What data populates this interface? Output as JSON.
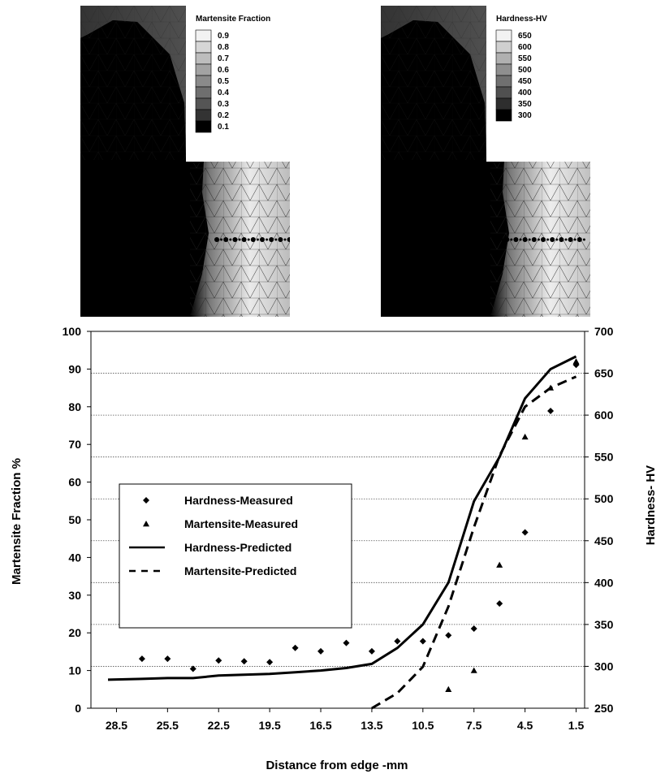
{
  "top_left_map": {
    "legend_title": "Martensite Fraction",
    "legend_levels": [
      "0.9",
      "0.8",
      "0.7",
      "0.6",
      "0.5",
      "0.4",
      "0.3",
      "0.2",
      "0.1"
    ],
    "legend_colors": [
      "#f2f2f2",
      "#d6d6d6",
      "#bdbdbd",
      "#a3a3a3",
      "#8a8a8a",
      "#6f6f6f",
      "#555555",
      "#333333",
      "#000000"
    ]
  },
  "top_right_map": {
    "legend_title": "Hardness-HV",
    "legend_levels": [
      "650",
      "600",
      "550",
      "500",
      "450",
      "400",
      "350",
      "300"
    ],
    "legend_colors": [
      "#f2f2f2",
      "#cfcfcf",
      "#b0b0b0",
      "#8f8f8f",
      "#707070",
      "#505050",
      "#2e2e2e",
      "#000000"
    ]
  },
  "chart_data": {
    "type": "line",
    "title": "",
    "xlabel": "Distance from edge -mm",
    "ylabel_left": "Martensite Fraction %",
    "ylabel_right": "Hardness- HV",
    "x_ticks": [
      "28.5",
      "25.5",
      "22.5",
      "19.5",
      "16.5",
      "13.5",
      "10.5",
      "7.5",
      "4.5",
      "1.5"
    ],
    "x_tick_values": [
      28.5,
      25.5,
      22.5,
      19.5,
      16.5,
      13.5,
      10.5,
      7.5,
      4.5,
      1.5
    ],
    "x_range": [
      30,
      1
    ],
    "x_reversed": true,
    "y_left_ticks": [
      "0",
      "10",
      "20",
      "30",
      "40",
      "50",
      "60",
      "70",
      "80",
      "90",
      "100"
    ],
    "y_left_range": [
      0,
      100
    ],
    "y_right_ticks": [
      "250",
      "300",
      "350",
      "400",
      "450",
      "500",
      "550",
      "600",
      "650",
      "700"
    ],
    "y_right_range": [
      250,
      700
    ],
    "grid": "horizontal-dotted",
    "legend_placement": "center-left",
    "series": [
      {
        "name": "Hardness-Measured",
        "axis": "right",
        "style": "diamond",
        "points": [
          [
            27,
            309
          ],
          [
            25.5,
            309
          ],
          [
            24,
            297
          ],
          [
            22.5,
            307
          ],
          [
            21,
            306
          ],
          [
            19.5,
            305
          ],
          [
            18,
            322
          ],
          [
            16.5,
            318
          ],
          [
            15,
            328
          ],
          [
            13.5,
            318
          ],
          [
            12,
            330
          ],
          [
            10.5,
            330
          ],
          [
            9,
            337
          ],
          [
            7.5,
            345
          ],
          [
            6,
            375
          ],
          [
            4.5,
            460
          ],
          [
            3,
            605
          ],
          [
            1.5,
            660
          ]
        ]
      },
      {
        "name": "Martensite-Measured",
        "axis": "left",
        "style": "triangle",
        "points": [
          [
            9,
            5
          ],
          [
            7.5,
            10
          ],
          [
            6,
            38
          ],
          [
            4.5,
            72
          ],
          [
            3,
            85
          ],
          [
            1.5,
            92
          ]
        ]
      },
      {
        "name": "Hardness-Predicted",
        "axis": "right",
        "style": "solid",
        "points": [
          [
            29,
            284
          ],
          [
            27,
            285
          ],
          [
            25.5,
            286
          ],
          [
            24,
            286
          ],
          [
            22.5,
            289
          ],
          [
            21,
            290
          ],
          [
            19.5,
            291
          ],
          [
            18,
            293
          ],
          [
            16.5,
            295
          ],
          [
            15,
            298
          ],
          [
            13.5,
            303
          ],
          [
            12,
            322
          ],
          [
            10.5,
            350
          ],
          [
            9,
            400
          ],
          [
            7.5,
            497
          ],
          [
            6,
            550
          ],
          [
            4.5,
            620
          ],
          [
            3,
            655
          ],
          [
            1.5,
            670
          ]
        ]
      },
      {
        "name": "Martensite-Predicted",
        "axis": "left",
        "style": "dashed",
        "points": [
          [
            13.5,
            0
          ],
          [
            12,
            4
          ],
          [
            10.5,
            11
          ],
          [
            9,
            27
          ],
          [
            7.5,
            48
          ],
          [
            6,
            67
          ],
          [
            4.5,
            80
          ],
          [
            3,
            85
          ],
          [
            1.5,
            88
          ]
        ]
      }
    ]
  }
}
